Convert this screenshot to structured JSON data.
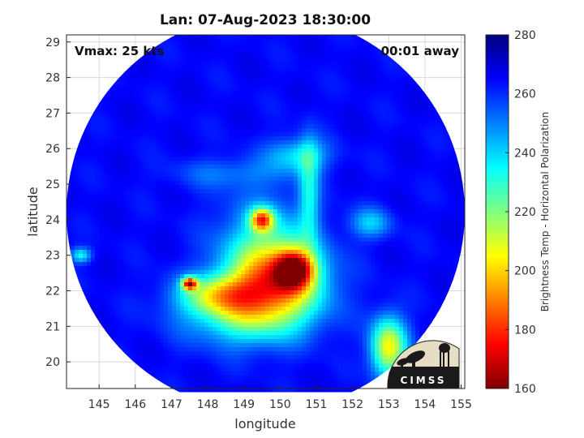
{
  "chart_data": {
    "type": "heatmap",
    "title": "Lan: 07-Aug-2023 18:30:00",
    "xlabel": "longitude",
    "ylabel": "latitude",
    "xlim": [
      144.1,
      155.1
    ],
    "ylim": [
      19.25,
      29.2
    ],
    "xticks": [
      "145",
      "146",
      "147",
      "148",
      "149",
      "150",
      "151",
      "152",
      "153",
      "154",
      "155"
    ],
    "yticks": [
      "20",
      "21",
      "22",
      "23",
      "24",
      "25",
      "26",
      "27",
      "28",
      "29"
    ],
    "grid": true,
    "annotation_left": "Vmax: 25 kts",
    "annotation_right": "00:01 away",
    "colorbar": {
      "label": "Brightness Temp - Horizontal Polarization",
      "range": [
        160,
        280
      ],
      "ticks": [
        "160",
        "180",
        "200",
        "220",
        "240",
        "260",
        "280"
      ],
      "colormap": [
        "#800000",
        "#ff0000",
        "#ff8000",
        "#ffff00",
        "#80ff80",
        "#00ffff",
        "#0080ff",
        "#0000ff",
        "#000080"
      ]
    },
    "background_temp": 265,
    "swath": {
      "center_lon": 149.6,
      "center_lat": 24.2,
      "radius_deg": 5.5
    },
    "features": [
      {
        "lon": 149.6,
        "lat": 23.0,
        "slon": 0.9,
        "slat": 1.1,
        "temp": 230
      },
      {
        "lon": 150.0,
        "lat": 22.3,
        "slon": 0.9,
        "slat": 0.7,
        "temp": 215
      },
      {
        "lon": 150.4,
        "lat": 22.6,
        "slon": 0.35,
        "slat": 0.35,
        "temp": 195
      },
      {
        "lon": 149.5,
        "lat": 24.0,
        "slon": 0.22,
        "slat": 0.22,
        "temp": 200
      },
      {
        "lon": 149.1,
        "lat": 21.3,
        "slon": 1.2,
        "slat": 0.6,
        "temp": 228
      },
      {
        "lon": 148.3,
        "lat": 21.9,
        "slon": 0.8,
        "slat": 0.4,
        "temp": 225
      },
      {
        "lon": 147.5,
        "lat": 22.2,
        "slon": 0.14,
        "slat": 0.12,
        "temp": 185
      },
      {
        "lon": 150.8,
        "lat": 24.8,
        "slon": 0.2,
        "slat": 1.0,
        "temp": 238
      },
      {
        "lon": 150.5,
        "lat": 25.8,
        "slon": 0.6,
        "slat": 0.35,
        "temp": 238
      },
      {
        "lon": 153.0,
        "lat": 20.4,
        "slon": 0.35,
        "slat": 0.6,
        "temp": 205
      },
      {
        "lon": 152.5,
        "lat": 23.9,
        "slon": 0.4,
        "slat": 0.3,
        "temp": 242
      },
      {
        "lon": 144.5,
        "lat": 23.0,
        "slon": 0.2,
        "slat": 0.15,
        "temp": 235
      },
      {
        "lon": 148.5,
        "lat": 25.3,
        "slon": 1.0,
        "slat": 0.3,
        "temp": 252
      }
    ]
  },
  "logo": {
    "text": "CIMSS"
  }
}
